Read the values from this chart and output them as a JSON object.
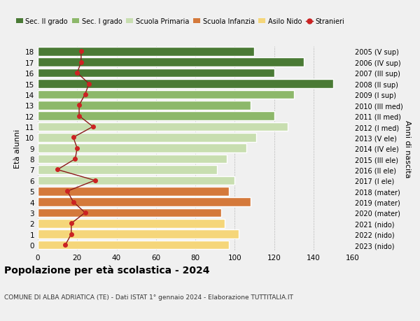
{
  "ages": [
    0,
    1,
    2,
    3,
    4,
    5,
    6,
    7,
    8,
    9,
    10,
    11,
    12,
    13,
    14,
    15,
    16,
    17,
    18
  ],
  "bar_values": [
    97,
    102,
    95,
    93,
    108,
    97,
    100,
    91,
    96,
    106,
    111,
    127,
    120,
    108,
    130,
    150,
    120,
    135,
    110
  ],
  "stranieri": [
    14,
    17,
    17,
    24,
    18,
    15,
    29,
    10,
    19,
    20,
    18,
    28,
    21,
    21,
    24,
    26,
    20,
    22,
    22
  ],
  "bar_colors": [
    "#f5d67a",
    "#f5d67a",
    "#f5d67a",
    "#d4793b",
    "#d4793b",
    "#d4793b",
    "#c8deb0",
    "#c8deb0",
    "#c8deb0",
    "#c8deb0",
    "#c8deb0",
    "#c8deb0",
    "#8db86a",
    "#8db86a",
    "#8db86a",
    "#4a7a35",
    "#4a7a35",
    "#4a7a35",
    "#4a7a35"
  ],
  "right_labels": [
    "2023 (nido)",
    "2022 (nido)",
    "2021 (nido)",
    "2020 (mater)",
    "2019 (mater)",
    "2018 (mater)",
    "2017 (I ele)",
    "2016 (II ele)",
    "2015 (III ele)",
    "2014 (IV ele)",
    "2013 (V ele)",
    "2012 (I med)",
    "2011 (II med)",
    "2010 (III med)",
    "2009 (I sup)",
    "2008 (II sup)",
    "2007 (III sup)",
    "2006 (IV sup)",
    "2005 (V sup)"
  ],
  "legend_labels": [
    "Sec. II grado",
    "Sec. I grado",
    "Scuola Primaria",
    "Scuola Infanzia",
    "Asilo Nido",
    "Stranieri"
  ],
  "legend_colors": [
    "#4a7a35",
    "#8db86a",
    "#c8deb0",
    "#d4793b",
    "#f5d67a",
    "#8b1a1a"
  ],
  "title": "Popolazione per età scolastica - 2024",
  "subtitle": "COMUNE DI ALBA ADRIATICA (TE) - Dati ISTAT 1° gennaio 2024 - Elaborazione TUTTITALIA.IT",
  "ylabel_left": "Età alunni",
  "ylabel_right": "Anni di nascita",
  "xlim": [
    0,
    160
  ],
  "xticks": [
    0,
    20,
    40,
    60,
    80,
    100,
    120,
    140,
    160
  ],
  "bg_color": "#f0f0f0",
  "bar_edge_color": "white",
  "stranieri_line_color": "#8b1a1a",
  "stranieri_marker_color": "#cc2222"
}
